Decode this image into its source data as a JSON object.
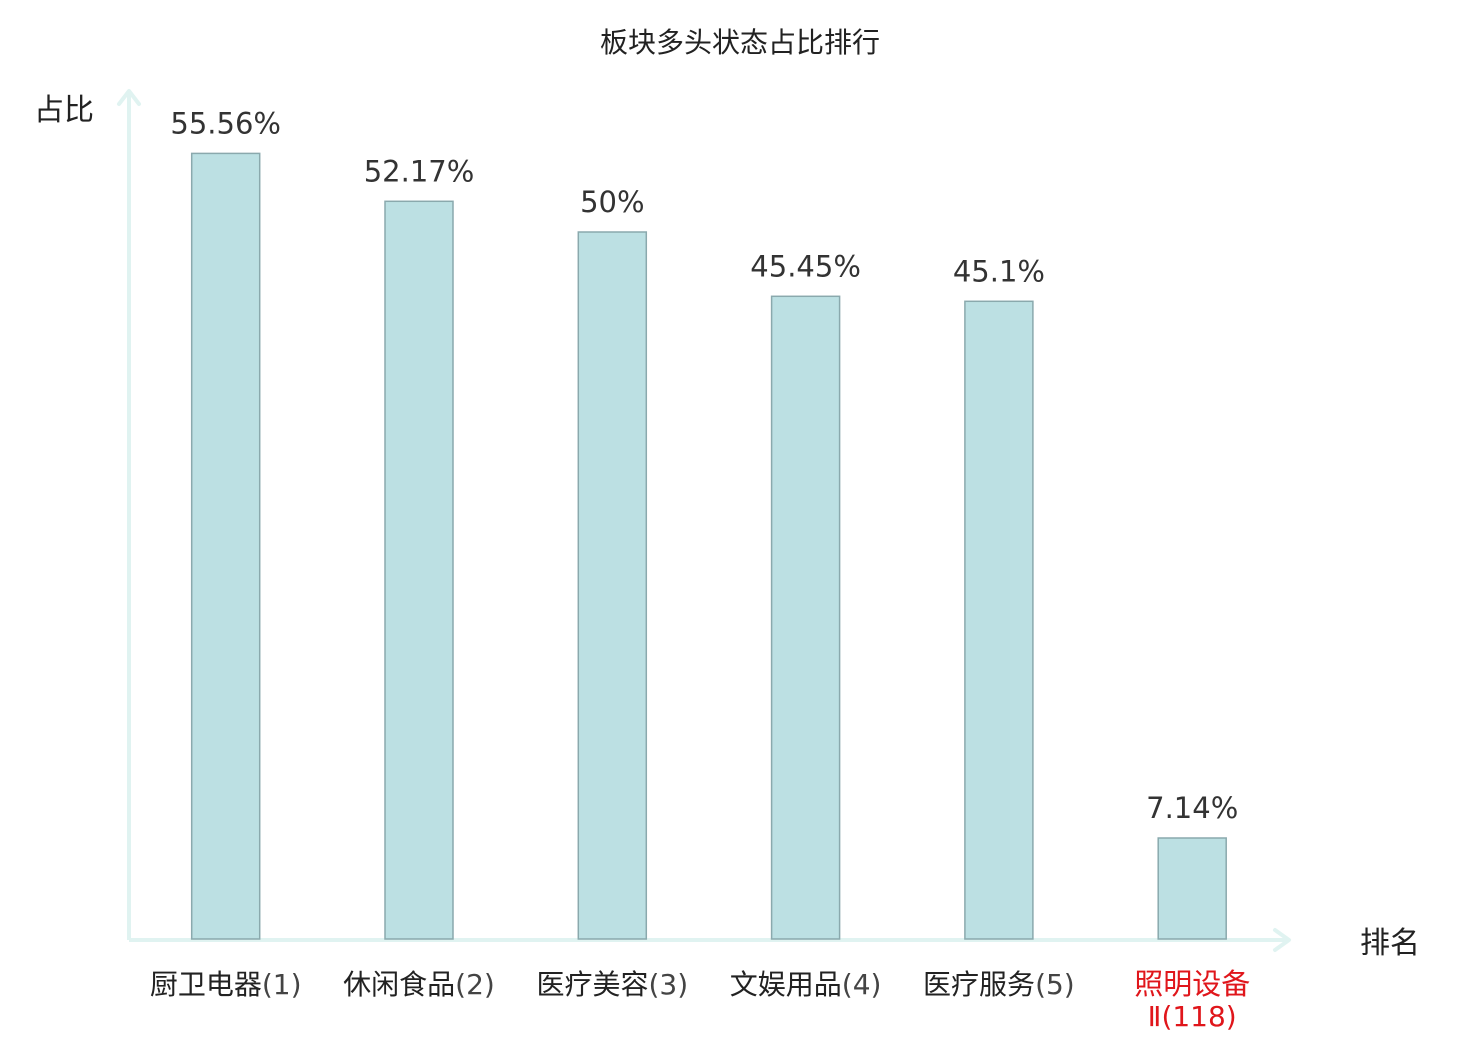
{
  "chart_data": {
    "type": "bar",
    "title": "板块多头状态占比排行",
    "ylabel": "占比",
    "xlabel": "排名",
    "ylim": [
      0,
      60
    ],
    "grid": false,
    "categories": [
      {
        "name": "厨卫电器",
        "rank": "(1)",
        "highlight": false
      },
      {
        "name": "休闲食品",
        "rank": "(2)",
        "highlight": false
      },
      {
        "name": "医疗美容",
        "rank": "(3)",
        "highlight": false
      },
      {
        "name": "文娱用品",
        "rank": "(4)",
        "highlight": false
      },
      {
        "name": "医疗服务",
        "rank": "(5)",
        "highlight": false
      },
      {
        "name": "照明设备",
        "rank": "Ⅱ(118)",
        "highlight": true
      }
    ],
    "values": [
      55.56,
      52.17,
      50,
      45.45,
      45.1,
      7.14
    ],
    "value_labels": [
      "55.56%",
      "52.17%",
      "50%",
      "45.45%",
      "45.1%",
      "7.14%"
    ]
  },
  "colors": {
    "bar_fill": "#bce0e3",
    "bar_stroke": "#8aa9ad",
    "axis": "#e0f3f1",
    "text": "#222222",
    "value_text": "#333333",
    "highlight": "#e0161b"
  }
}
